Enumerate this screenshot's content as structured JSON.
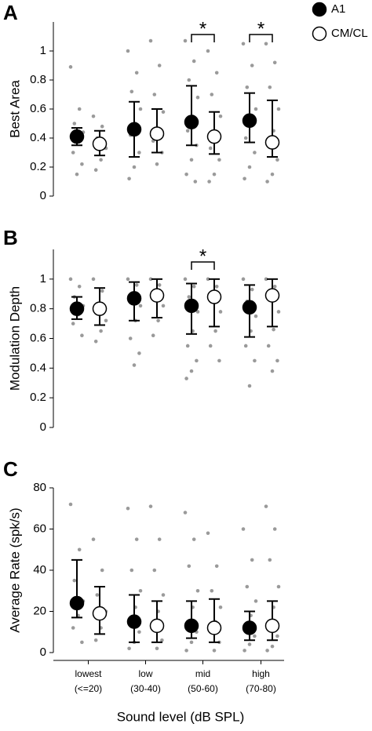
{
  "chart_data": [
    {
      "type": "dot-error",
      "panel": "A",
      "ylabel": "Best Area",
      "ylim": [
        0,
        1.2
      ],
      "yticks": [
        0,
        0.2,
        0.4,
        0.6,
        0.8,
        1
      ],
      "legend": "top-right",
      "annotations": [
        {
          "text": "*",
          "group": 2
        },
        {
          "text": "*",
          "group": 3
        }
      ],
      "series": [
        {
          "name": "A1",
          "color": "#000000",
          "values": [
            0.41,
            0.46,
            0.51,
            0.52
          ],
          "lower": [
            0.35,
            0.27,
            0.35,
            0.37
          ],
          "upper": [
            0.47,
            0.65,
            0.76,
            0.71
          ],
          "points": [
            [
              0.89,
              0.6,
              0.5,
              0.44,
              0.38,
              0.3,
              0.22,
              0.15
            ],
            [
              1.0,
              0.85,
              0.72,
              0.6,
              0.5,
              0.42,
              0.3,
              0.2,
              0.12
            ],
            [
              1.07,
              0.93,
              0.8,
              0.68,
              0.55,
              0.45,
              0.35,
              0.25,
              0.15,
              0.1
            ],
            [
              1.05,
              0.9,
              0.75,
              0.6,
              0.5,
              0.4,
              0.3,
              0.2,
              0.12
            ]
          ]
        },
        {
          "name": "CM/CL",
          "color": "#ffffff",
          "values": [
            0.36,
            0.43,
            0.41,
            0.37
          ],
          "lower": [
            0.28,
            0.3,
            0.29,
            0.27
          ],
          "upper": [
            0.45,
            0.6,
            0.58,
            0.66
          ],
          "points": [
            [
              0.55,
              0.48,
              0.4,
              0.33,
              0.25,
              0.18
            ],
            [
              1.07,
              0.9,
              0.7,
              0.58,
              0.45,
              0.38,
              0.3,
              0.22
            ],
            [
              1.0,
              0.85,
              0.7,
              0.55,
              0.42,
              0.33,
              0.25,
              0.15,
              0.1
            ],
            [
              1.05,
              0.92,
              0.75,
              0.6,
              0.45,
              0.35,
              0.25,
              0.15,
              0.1
            ]
          ]
        }
      ]
    },
    {
      "type": "dot-error",
      "panel": "B",
      "ylabel": "Modulation Depth",
      "ylim": [
        0,
        1.2
      ],
      "yticks": [
        0,
        0.2,
        0.4,
        0.6,
        0.8,
        1
      ],
      "annotations": [
        {
          "text": "*",
          "group": 2
        }
      ],
      "series": [
        {
          "color": "#000000",
          "values": [
            0.8,
            0.87,
            0.82,
            0.81
          ],
          "lower": [
            0.73,
            0.72,
            0.63,
            0.61
          ],
          "upper": [
            0.88,
            0.98,
            0.97,
            0.96
          ],
          "points": [
            [
              1.0,
              0.95,
              0.88,
              0.82,
              0.76,
              0.7,
              0.62
            ],
            [
              1.0,
              0.96,
              0.9,
              0.82,
              0.72,
              0.6,
              0.5,
              0.42
            ],
            [
              1.0,
              0.95,
              0.88,
              0.78,
              0.65,
              0.55,
              0.45,
              0.38,
              0.33
            ],
            [
              1.0,
              0.93,
              0.85,
              0.75,
              0.65,
              0.55,
              0.45,
              0.28
            ]
          ]
        },
        {
          "color": "#ffffff",
          "values": [
            0.8,
            0.89,
            0.88,
            0.89
          ],
          "lower": [
            0.69,
            0.74,
            0.68,
            0.68
          ],
          "upper": [
            0.94,
            1.0,
            1.0,
            1.0
          ],
          "points": [
            [
              1.0,
              0.92,
              0.82,
              0.72,
              0.65,
              0.58
            ],
            [
              1.0,
              0.96,
              0.9,
              0.82,
              0.72,
              0.62
            ],
            [
              1.0,
              0.95,
              0.88,
              0.78,
              0.65,
              0.55,
              0.45
            ],
            [
              1.0,
              0.95,
              0.88,
              0.78,
              0.66,
              0.55,
              0.45,
              0.38
            ]
          ]
        }
      ]
    },
    {
      "type": "dot-error",
      "panel": "C",
      "ylabel": "Average Rate (spk/s)",
      "xlabel": "Sound level (dB SPL)",
      "ylim": [
        0,
        80
      ],
      "yticks": [
        0,
        20,
        40,
        60,
        80
      ],
      "categories": [
        "lowest",
        "low",
        "mid",
        "high"
      ],
      "sublabels": [
        "(<=20)",
        "(30-40)",
        "(50-60)",
        "(70-80)"
      ],
      "series": [
        {
          "color": "#000000",
          "values": [
            24,
            15,
            13,
            12
          ],
          "lower": [
            17,
            5,
            7,
            6
          ],
          "upper": [
            45,
            28,
            25,
            20
          ],
          "points": [
            [
              72,
              50,
              35,
              25,
              18,
              12,
              5
            ],
            [
              70,
              55,
              40,
              30,
              22,
              15,
              10,
              5,
              2
            ],
            [
              68,
              55,
              42,
              30,
              22,
              15,
              10,
              5,
              1
            ],
            [
              60,
              45,
              32,
              25,
              18,
              12,
              8,
              4,
              1
            ]
          ]
        },
        {
          "color": "#ffffff",
          "values": [
            19,
            13,
            12,
            13
          ],
          "lower": [
            9,
            5,
            5,
            6
          ],
          "upper": [
            32,
            25,
            26,
            25
          ],
          "points": [
            [
              55,
              40,
              28,
              20,
              12,
              6
            ],
            [
              71,
              55,
              40,
              28,
              20,
              12,
              6,
              2
            ],
            [
              58,
              42,
              30,
              22,
              15,
              10,
              5,
              1
            ],
            [
              71,
              60,
              45,
              32,
              22,
              15,
              8,
              3,
              1
            ]
          ]
        }
      ]
    }
  ]
}
